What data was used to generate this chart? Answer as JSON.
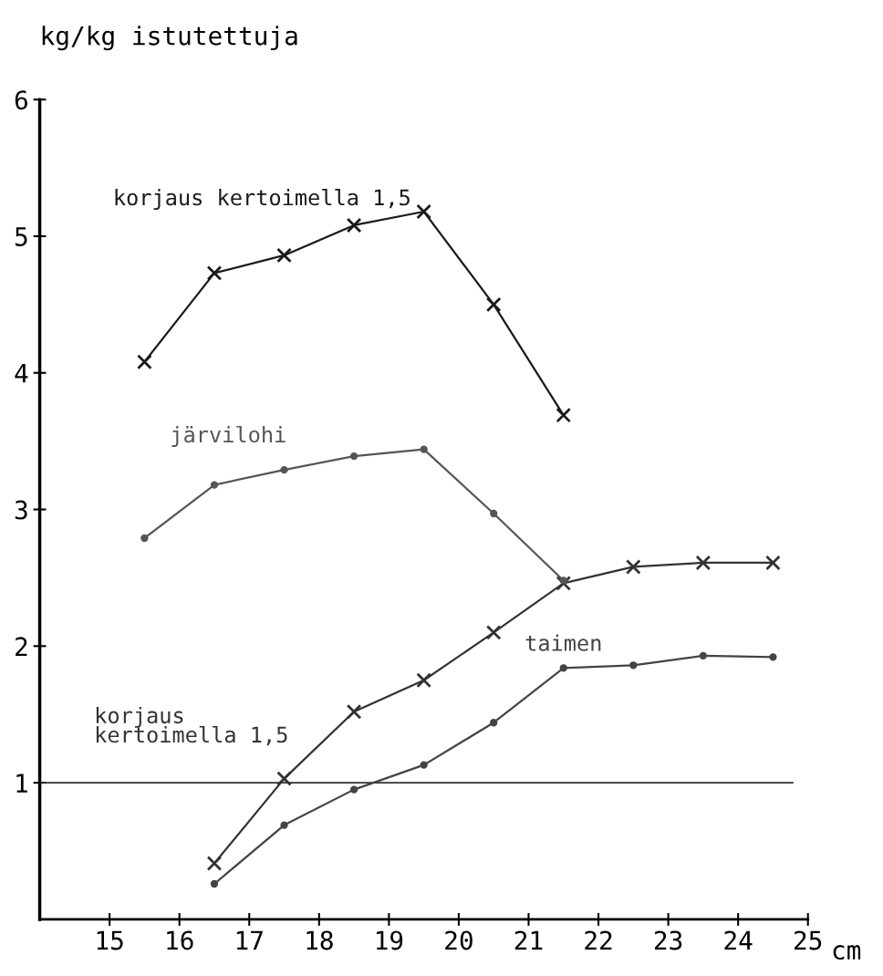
{
  "chart_data": {
    "type": "line",
    "ylabel": "kg/kg istutettuja",
    "xlabel": "cm",
    "xlim": [
      14,
      25
    ],
    "xticks": [
      15,
      16,
      17,
      18,
      19,
      20,
      21,
      22,
      23,
      24,
      25
    ],
    "ylim": [
      0,
      6
    ],
    "yticks": [
      1,
      2,
      3,
      4,
      5,
      6
    ],
    "grid": false,
    "legend": false,
    "line_style": "solid",
    "series": [
      {
        "name": "korjaus kertoimella 1,5",
        "color": "#1a1a1a",
        "marker": "cross",
        "x": [
          15.5,
          16.5,
          17.5,
          18.5,
          19.5,
          20.5,
          21.5
        ],
        "values": [
          4.08,
          4.73,
          4.86,
          5.08,
          5.18,
          4.5,
          3.69
        ]
      },
      {
        "name": "järvilohi",
        "color": "#555555",
        "marker": "circle",
        "x": [
          15.5,
          16.5,
          17.5,
          18.5,
          19.5,
          20.5,
          21.5
        ],
        "values": [
          2.79,
          3.18,
          3.29,
          3.39,
          3.44,
          2.97,
          2.48
        ]
      },
      {
        "name": "korjaus\nkertoimella 1,5",
        "color": "#333333",
        "marker": "cross",
        "x": [
          16.5,
          17.5,
          18.5,
          19.5,
          20.5,
          21.5,
          22.5,
          23.5,
          24.5
        ],
        "values": [
          0.41,
          1.03,
          1.52,
          1.75,
          2.1,
          2.46,
          2.58,
          2.61,
          2.61
        ]
      },
      {
        "name": "taimen",
        "color": "#444444",
        "marker": "circle",
        "x": [
          16.5,
          17.5,
          18.5,
          19.5,
          20.5,
          21.5,
          22.5,
          23.5,
          24.5
        ],
        "values": [
          0.26,
          0.69,
          0.95,
          1.13,
          1.44,
          1.84,
          1.86,
          1.93,
          1.92
        ]
      }
    ],
    "ref_lines": [
      {
        "axis": "y",
        "value": 1,
        "color": "#333333"
      }
    ]
  }
}
